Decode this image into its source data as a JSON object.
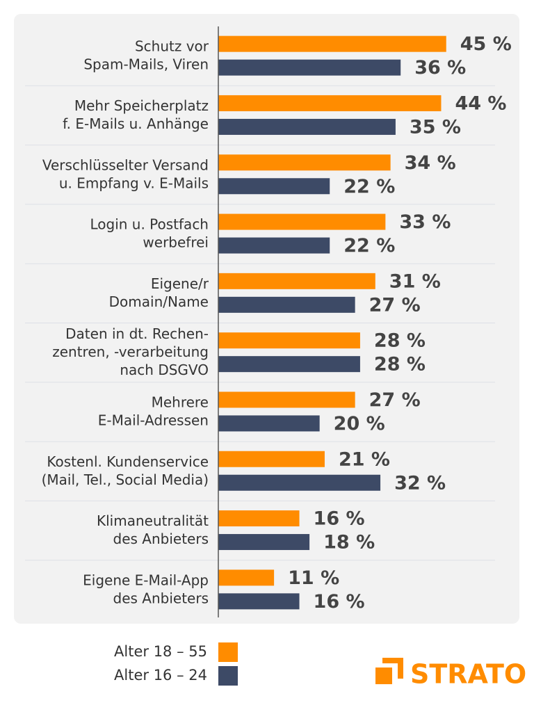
{
  "chart_data": {
    "type": "bar",
    "orientation": "horizontal",
    "categories": [
      "Schutz vor\nSpam-Mails, Viren",
      "Mehr Speicherplatz\nf. E-Mails u. Anhänge",
      "Verschlüsselter Versand\nu. Empfang v. E-Mails",
      "Login u. Postfach\nwerbefrei",
      "Eigene/r\nDomain/Name",
      "Daten in dt. Rechen-\nzentren, -verarbeitung\nnach DSGVO",
      "Mehrere\nE-Mail-Adressen",
      "Kostenl. Kundenservice\n(Mail, Tel., Social Media)",
      "Klimaneutralität\ndes Anbieters",
      "Eigene E-Mail-App\ndes Anbieters"
    ],
    "series": [
      {
        "name": "Alter 18 – 55",
        "color": "#ff8c00",
        "values": [
          45,
          44,
          34,
          33,
          31,
          28,
          27,
          21,
          16,
          11
        ],
        "value_labels": [
          "45 %",
          "44 %",
          "34 %",
          "33 %",
          "31 %",
          "28 %",
          "27 %",
          "21 %",
          "16 %",
          "11 %"
        ]
      },
      {
        "name": "Alter 16 – 24",
        "color": "#3d4a66",
        "values": [
          36,
          35,
          22,
          22,
          27,
          28,
          20,
          32,
          18,
          16
        ],
        "value_labels": [
          "36 %",
          "35 %",
          "22 %",
          "22 %",
          "27 %",
          "28 %",
          "20 %",
          "32 %",
          "18 %",
          "16 %"
        ]
      }
    ],
    "xlim": [
      0,
      60
    ]
  },
  "brand": "STRATO"
}
